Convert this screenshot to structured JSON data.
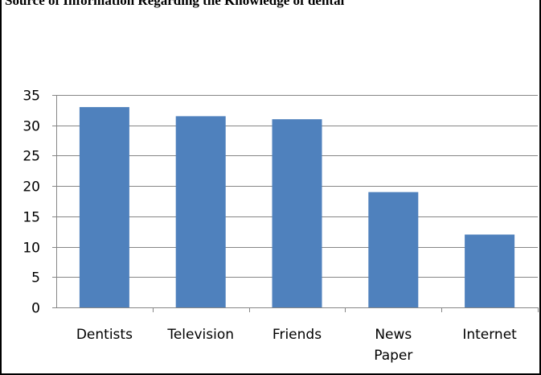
{
  "header": {
    "caption": "Source of Information Regarding the Knowledge of dental"
  },
  "chart_data": {
    "type": "bar",
    "categories": [
      "Dentists",
      "Television",
      "Friends",
      "News\nPaper",
      "Internet"
    ],
    "values": [
      33,
      31.5,
      31,
      19,
      12
    ],
    "title": "",
    "xlabel": "",
    "ylabel": "",
    "ylim": [
      0,
      35
    ],
    "yticks": [
      0,
      5,
      10,
      15,
      20,
      25,
      30,
      35
    ],
    "grid": true,
    "legend": "none",
    "bar_color": "#4f81bd",
    "grid_color": "#868686"
  }
}
